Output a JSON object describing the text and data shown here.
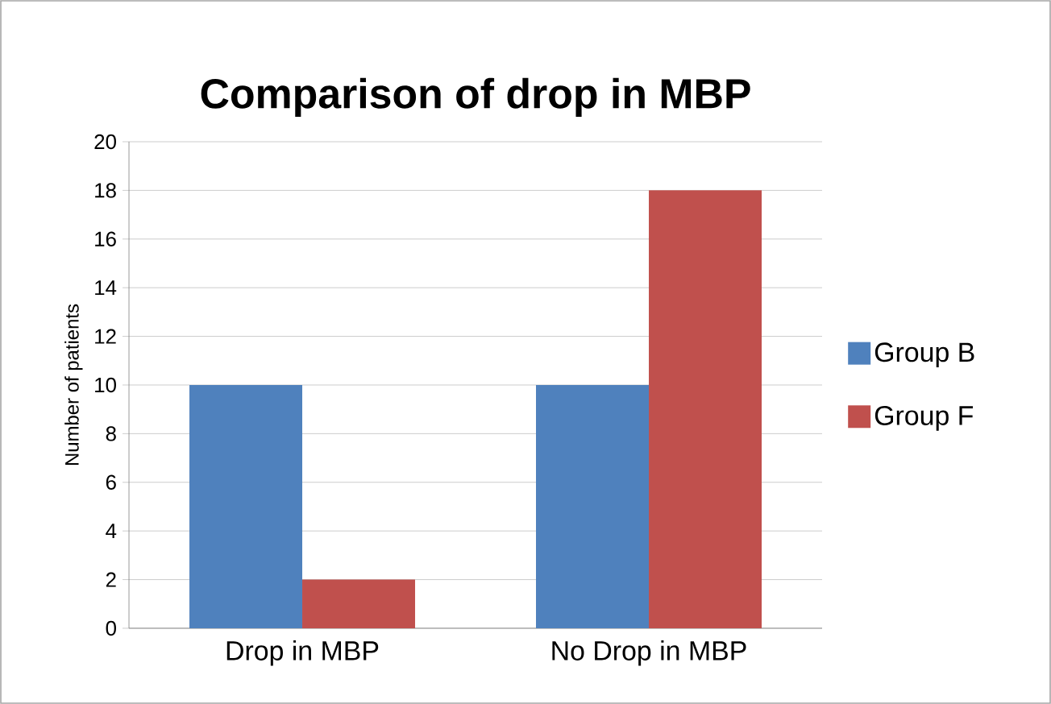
{
  "chart_data": {
    "type": "bar",
    "title": "Comparison of drop in MBP",
    "ylabel": "Number of patients",
    "categories": [
      "Drop in MBP",
      "No Drop in MBP"
    ],
    "series": [
      {
        "name": "Group B",
        "color": "#4f81bd",
        "values": [
          10,
          10
        ]
      },
      {
        "name": "Group F",
        "color": "#c0504d",
        "values": [
          2,
          18
        ]
      }
    ],
    "ylim": [
      0,
      20
    ],
    "yticks": [
      0,
      2,
      4,
      6,
      8,
      10,
      12,
      14,
      16,
      18,
      20
    ],
    "grid": "y",
    "legend": "right"
  }
}
